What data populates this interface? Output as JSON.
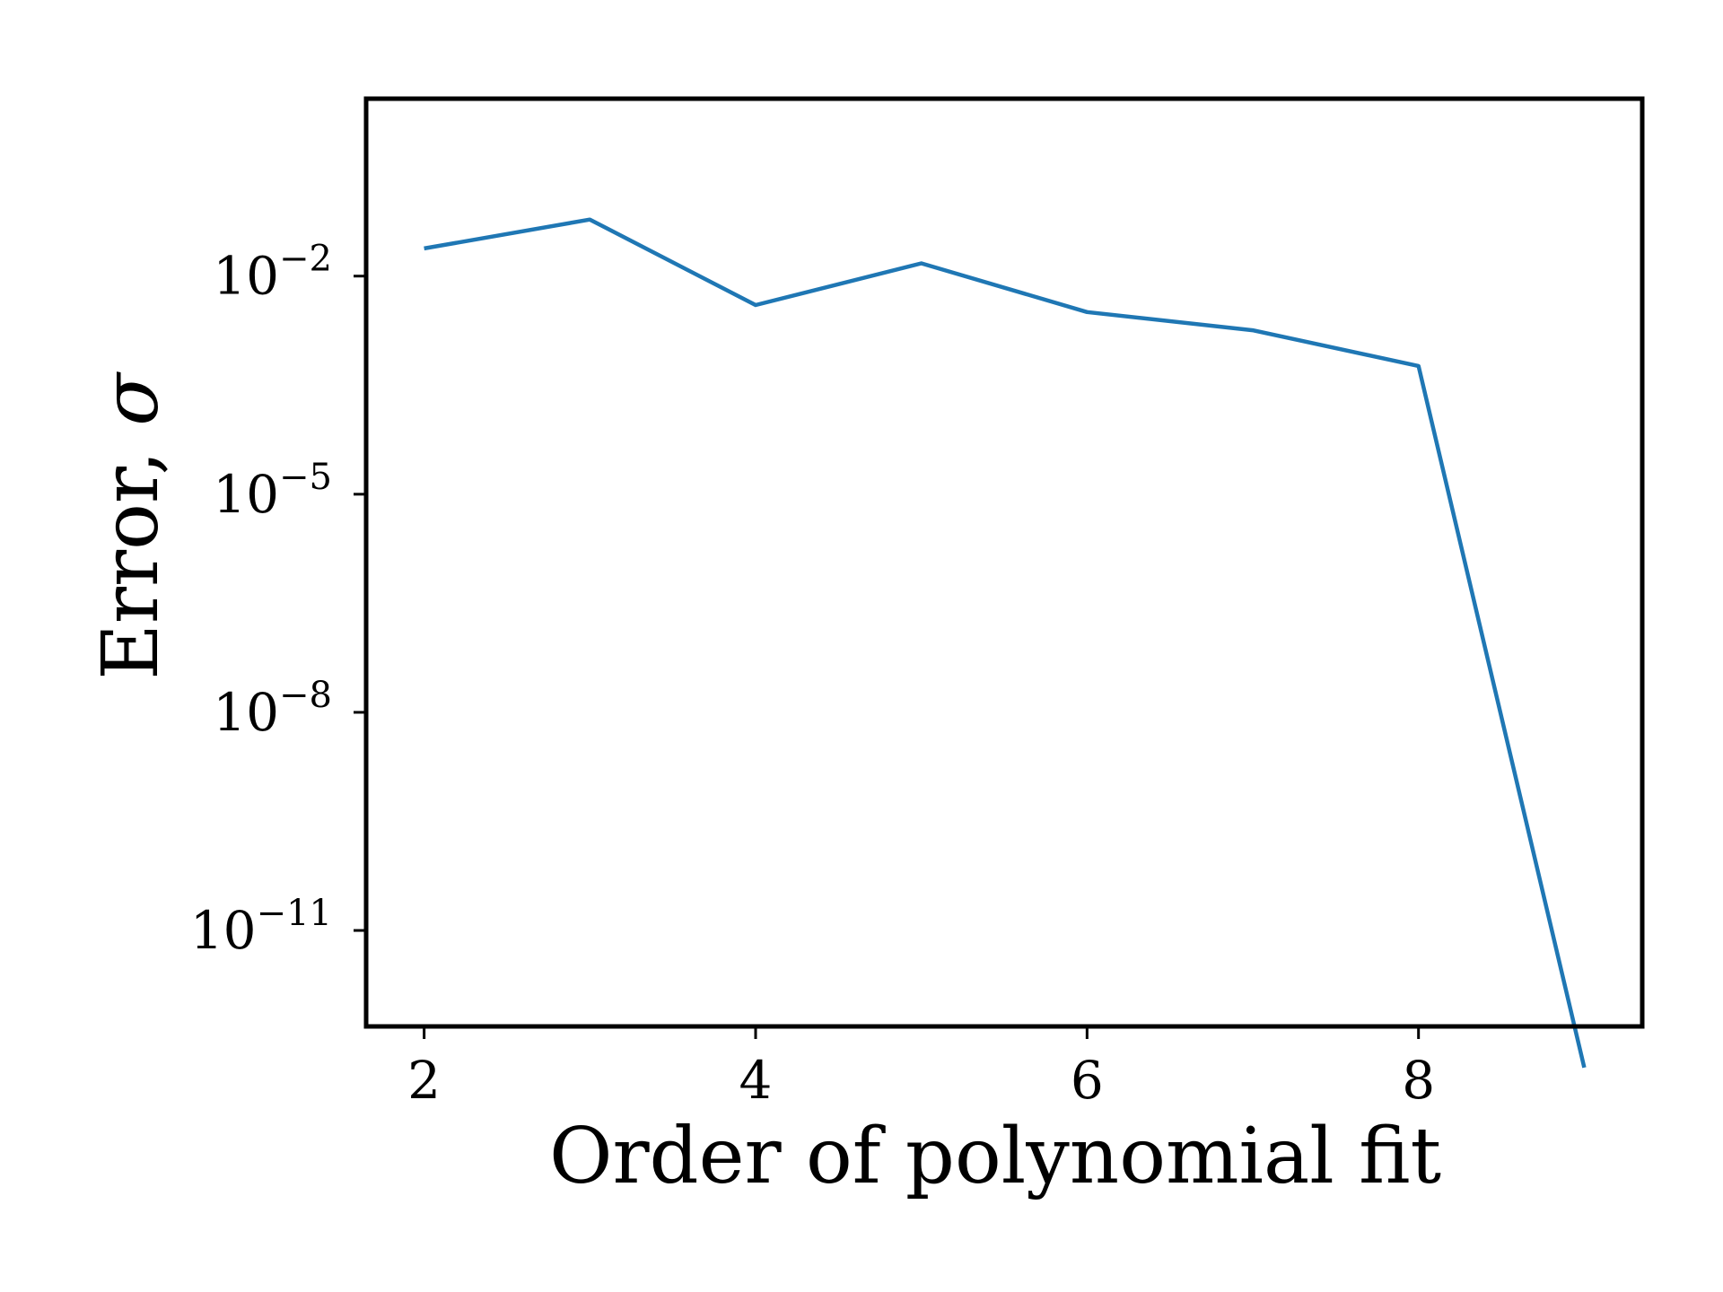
{
  "chart_data": {
    "type": "line",
    "xlabel": "Order of polynomial fit",
    "ylabel_text": "Error, ",
    "ylabel_symbol": "σ",
    "yscale": "log",
    "xlim": [
      1.65,
      9.35
    ],
    "ylim_log10": [
      -12.32,
      0.44
    ],
    "grid": false,
    "line_color": "#1f77b4",
    "x_ticks": [
      {
        "value": 2,
        "label": "2"
      },
      {
        "value": 4,
        "label": "4"
      },
      {
        "value": 6,
        "label": "6"
      },
      {
        "value": 8,
        "label": "8"
      }
    ],
    "y_ticks": [
      {
        "value": 0.01,
        "base": "10",
        "exp": "−2"
      },
      {
        "value": 1e-05,
        "base": "10",
        "exp": "−5"
      },
      {
        "value": 1e-08,
        "base": "10",
        "exp": "−8"
      },
      {
        "value": 1e-11,
        "base": "10",
        "exp": "−11"
      }
    ],
    "series": [
      {
        "x": [
          2,
          3,
          4,
          5,
          6,
          7,
          8,
          9
        ],
        "y": [
          0.024,
          0.06,
          0.004,
          0.015,
          0.0032,
          0.0018,
          0.00058,
          1.3e-13
        ]
      }
    ]
  }
}
